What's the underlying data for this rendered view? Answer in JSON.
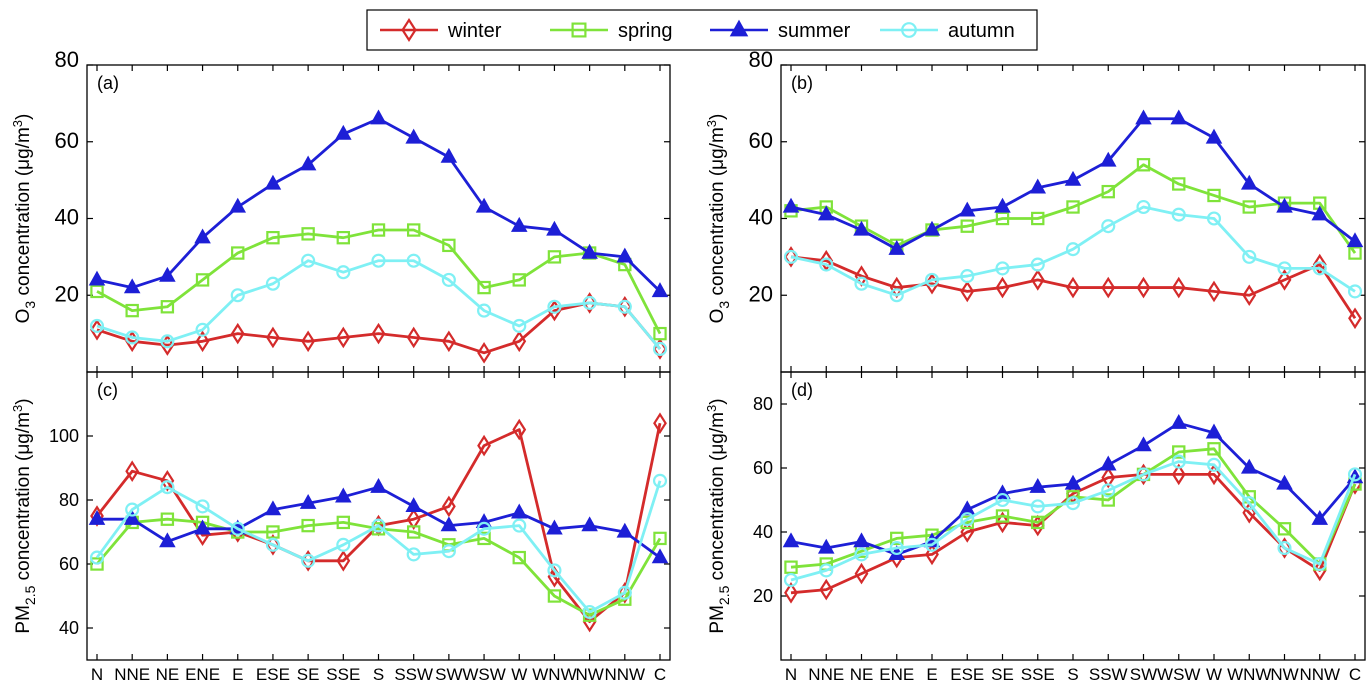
{
  "legend": [
    {
      "name": "winter",
      "color": "#d42b2b",
      "marker": "diamond"
    },
    {
      "name": "spring",
      "color": "#7fe33a",
      "marker": "square"
    },
    {
      "name": "summer",
      "color": "#1d1fd6",
      "marker": "triangle"
    },
    {
      "name": "autumn",
      "color": "#7ff0f4",
      "marker": "circle"
    }
  ],
  "colors": {
    "axes": "#000000",
    "background": "#ffffff"
  },
  "chart_data": [
    {
      "panel": "(a)",
      "type": "line",
      "ylabel_main": "O",
      "ylabel_sub": "3",
      "ylabel_rest": " concentration (μg/m",
      "ylabel_sup": "3",
      "ylabel_end": ")",
      "ylim": [
        0,
        80
      ],
      "yticks": [
        20,
        40,
        60,
        80
      ],
      "categories": [
        "N",
        "NNE",
        "NE",
        "ENE",
        "E",
        "ESE",
        "SE",
        "SSE",
        "S",
        "SSW",
        "SW",
        "WSW",
        "W",
        "WNW",
        "NW",
        "NNW",
        "C"
      ],
      "series": [
        {
          "name": "winter",
          "values": [
            11,
            8,
            7,
            8,
            10,
            9,
            8,
            9,
            10,
            9,
            8,
            5,
            8,
            16,
            18,
            17,
            6
          ]
        },
        {
          "name": "spring",
          "values": [
            21,
            16,
            17,
            24,
            31,
            35,
            36,
            35,
            37,
            37,
            33,
            22,
            24,
            30,
            31,
            28,
            10
          ]
        },
        {
          "name": "summer",
          "values": [
            24,
            22,
            25,
            35,
            43,
            49,
            54,
            62,
            66,
            61,
            56,
            43,
            38,
            37,
            31,
            30,
            21
          ]
        },
        {
          "name": "autumn",
          "values": [
            12,
            9,
            8,
            11,
            20,
            23,
            29,
            26,
            29,
            29,
            24,
            16,
            12,
            17,
            18,
            17,
            6
          ]
        }
      ]
    },
    {
      "panel": "(b)",
      "type": "line",
      "ylabel_main": "O",
      "ylabel_sub": "3",
      "ylabel_rest": " concentration (μg/m",
      "ylabel_sup": "3",
      "ylabel_end": ")",
      "ylim": [
        0,
        80
      ],
      "yticks": [
        20,
        40,
        60,
        80
      ],
      "categories": [
        "N",
        "NNE",
        "NE",
        "ENE",
        "E",
        "ESE",
        "SE",
        "SSE",
        "S",
        "SSW",
        "SW",
        "WSW",
        "W",
        "WNW",
        "NW",
        "NNW",
        "C"
      ],
      "series": [
        {
          "name": "winter",
          "values": [
            30,
            29,
            25,
            22,
            23,
            21,
            22,
            24,
            22,
            22,
            22,
            22,
            21,
            20,
            24,
            28,
            14
          ]
        },
        {
          "name": "spring",
          "values": [
            42,
            43,
            38,
            33,
            37,
            38,
            40,
            40,
            43,
            47,
            54,
            49,
            46,
            43,
            44,
            44,
            31
          ]
        },
        {
          "name": "summer",
          "values": [
            43,
            41,
            37,
            32,
            37,
            42,
            43,
            48,
            50,
            55,
            66,
            66,
            61,
            49,
            43,
            41,
            34
          ]
        },
        {
          "name": "autumn",
          "values": [
            30,
            28,
            23,
            20,
            24,
            25,
            27,
            28,
            32,
            38,
            43,
            41,
            40,
            30,
            27,
            27,
            21
          ]
        }
      ]
    },
    {
      "panel": "(c)",
      "type": "line",
      "ylabel_main": "PM",
      "ylabel_sub": "2.5",
      "ylabel_rest": " concentration (μg/m",
      "ylabel_sup": "3",
      "ylabel_end": ")",
      "ylim": [
        30,
        120
      ],
      "yticks": [
        40,
        60,
        80,
        100
      ],
      "categories": [
        "N",
        "NNE",
        "NE",
        "ENE",
        "E",
        "ESE",
        "SE",
        "SSE",
        "S",
        "SSW",
        "SW",
        "WSW",
        "W",
        "WNW",
        "NW",
        "NNW",
        "C"
      ],
      "series": [
        {
          "name": "winter",
          "values": [
            75,
            89,
            86,
            69,
            70,
            66,
            61,
            61,
            72,
            74,
            78,
            97,
            102,
            56,
            42,
            51,
            104
          ]
        },
        {
          "name": "spring",
          "values": [
            60,
            73,
            74,
            73,
            70,
            70,
            72,
            73,
            71,
            70,
            66,
            68,
            62,
            50,
            44,
            49,
            68
          ]
        },
        {
          "name": "summer",
          "values": [
            74,
            74,
            67,
            71,
            71,
            77,
            79,
            81,
            84,
            78,
            72,
            73,
            76,
            71,
            72,
            70,
            62
          ]
        },
        {
          "name": "autumn",
          "values": [
            62,
            77,
            84,
            78,
            71,
            66,
            61,
            66,
            72,
            63,
            64,
            71,
            72,
            58,
            45,
            51,
            86
          ]
        }
      ]
    },
    {
      "panel": "(d)",
      "type": "line",
      "ylabel_main": "PM",
      "ylabel_sub": "2.5",
      "ylabel_rest": " concentration (μg/m",
      "ylabel_sup": "3",
      "ylabel_end": ")",
      "ylim": [
        0,
        90
      ],
      "yticks": [
        20,
        40,
        60,
        80
      ],
      "categories": [
        "N",
        "NNE",
        "NE",
        "ENE",
        "E",
        "ESE",
        "SE",
        "SSE",
        "S",
        "SSW",
        "SW",
        "WSW",
        "W",
        "WNW",
        "NW",
        "NNW",
        "C"
      ],
      "series": [
        {
          "name": "winter",
          "values": [
            21,
            22,
            27,
            32,
            33,
            40,
            43,
            42,
            52,
            57,
            58,
            58,
            58,
            46,
            35,
            28,
            55
          ]
        },
        {
          "name": "spring",
          "values": [
            29,
            30,
            34,
            38,
            39,
            43,
            45,
            43,
            51,
            50,
            58,
            65,
            66,
            51,
            41,
            30,
            55
          ]
        },
        {
          "name": "summer",
          "values": [
            37,
            35,
            37,
            33,
            37,
            47,
            52,
            54,
            55,
            61,
            67,
            74,
            71,
            60,
            55,
            44,
            57
          ]
        },
        {
          "name": "autumn",
          "values": [
            25,
            28,
            33,
            35,
            36,
            44,
            50,
            48,
            49,
            53,
            58,
            62,
            61,
            49,
            35,
            30,
            58
          ]
        }
      ]
    }
  ]
}
